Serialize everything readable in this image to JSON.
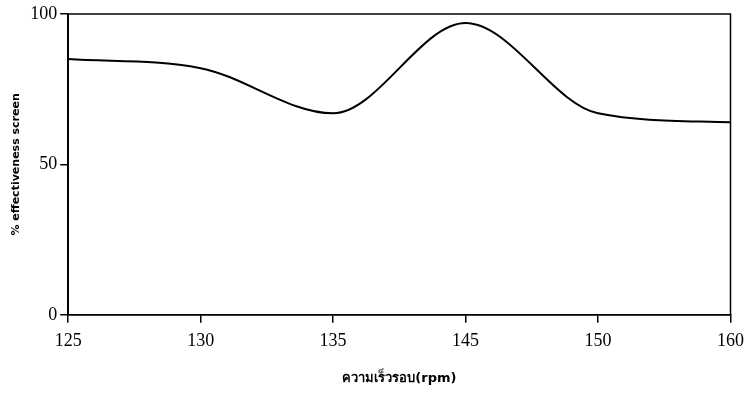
{
  "chart_data": {
    "type": "line",
    "x_label": "ความเร็วรอบ(rpm)",
    "y_label": "% effectiveness screen",
    "categories": [
      "125",
      "130",
      "135",
      "145",
      "150",
      "160"
    ],
    "values": [
      85,
      82,
      67,
      97,
      67,
      64
    ],
    "color": "#000000",
    "marker": "none",
    "line_style": "solid",
    "ylim": [
      0,
      100
    ],
    "yticks": [
      0,
      50,
      100
    ],
    "grid": false
  }
}
